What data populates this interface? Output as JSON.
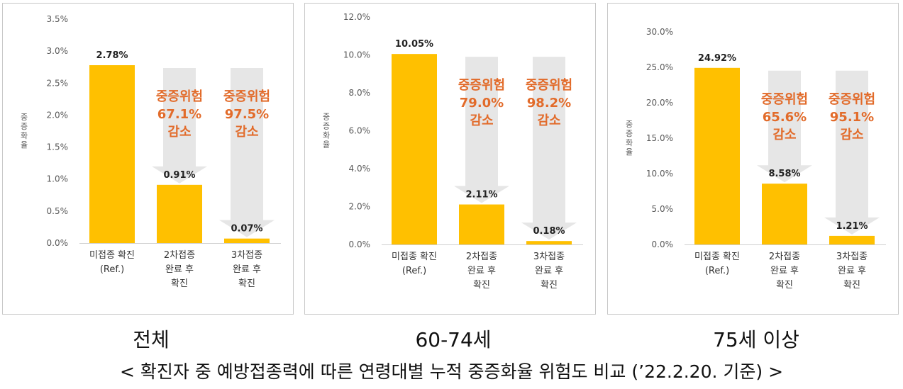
{
  "chart_data": [
    {
      "type": "bar",
      "ylabel": "중증화율",
      "ylim": [
        0,
        3.5
      ],
      "yticks": [
        "0.0%",
        "0.5%",
        "1.0%",
        "1.5%",
        "2.0%",
        "2.5%",
        "3.0%",
        "3.5%"
      ],
      "categories": [
        [
          "미접종 확진",
          "(Ref.)"
        ],
        [
          "2차접종",
          "완료 후",
          "확진"
        ],
        [
          "3차접종",
          "완료 후",
          "확진"
        ]
      ],
      "values": [
        2.78,
        0.91,
        0.07
      ],
      "value_labels": [
        "2.78%",
        "0.91%",
        "0.07%"
      ],
      "annotations": [
        {
          "bar": 1,
          "lines": [
            "중증위험",
            "67.1%",
            "감소"
          ]
        },
        {
          "bar": 2,
          "lines": [
            "중증위험",
            "97.5%",
            "감소"
          ]
        }
      ],
      "caption": "전체"
    },
    {
      "type": "bar",
      "ylabel": "중증화율",
      "ylim": [
        0,
        12
      ],
      "yticks": [
        "0.0%",
        "2.0%",
        "4.0%",
        "6.0%",
        "8.0%",
        "10.0%",
        "12.0%"
      ],
      "categories": [
        [
          "미접종 확진",
          "(Ref.)"
        ],
        [
          "2차접종",
          "완료 후",
          "확진"
        ],
        [
          "3차접종",
          "완료 후",
          "확진"
        ]
      ],
      "values": [
        10.05,
        2.11,
        0.18
      ],
      "value_labels": [
        "10.05%",
        "2.11%",
        "0.18%"
      ],
      "annotations": [
        {
          "bar": 1,
          "lines": [
            "중증위험",
            "79.0%",
            "감소"
          ]
        },
        {
          "bar": 2,
          "lines": [
            "중증위험",
            "98.2%",
            "감소"
          ]
        }
      ],
      "caption": "60-74세"
    },
    {
      "type": "bar",
      "ylabel": "중증화율",
      "ylim": [
        0,
        30
      ],
      "yticks": [
        "0.0%",
        "5.0%",
        "10.0%",
        "15.0%",
        "20.0%",
        "25.0%",
        "30.0%"
      ],
      "categories": [
        [
          "미접종 확진",
          "(Ref.)"
        ],
        [
          "2차접종",
          "완료 후",
          "확진"
        ],
        [
          "3차접종",
          "완료 후",
          "확진"
        ]
      ],
      "values": [
        24.92,
        8.58,
        1.21
      ],
      "value_labels": [
        "24.92%",
        "8.58%",
        "1.21%"
      ],
      "annotations": [
        {
          "bar": 1,
          "lines": [
            "중증위험",
            "65.6%",
            "감소"
          ]
        },
        {
          "bar": 2,
          "lines": [
            "중증위험",
            "95.1%",
            "감소"
          ]
        }
      ],
      "caption": "75세 이상"
    }
  ],
  "footer": "< 확진자 중 예방접종력에 따른 연령대별 누적 중증화율 위험도 비교 (’22.2.20. 기준) >",
  "colors": {
    "bar": "#FFC000",
    "arrow": "#E6E6E6",
    "annotation": "#E26B2A",
    "axis_text": "#595959"
  }
}
